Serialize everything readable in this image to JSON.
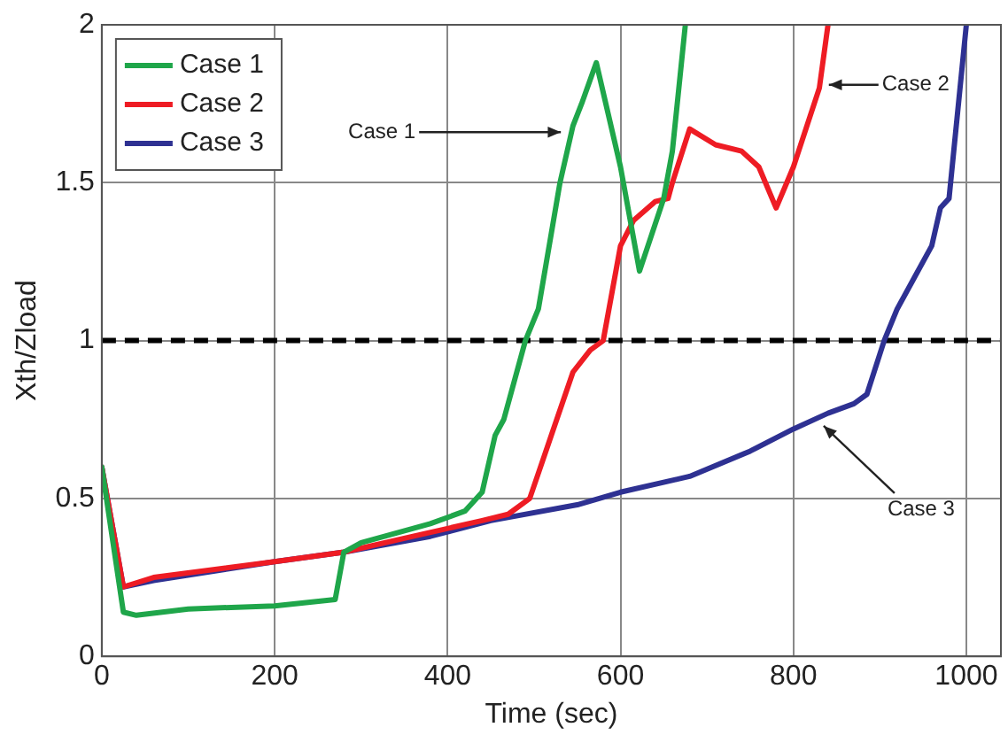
{
  "chart_data": {
    "type": "line",
    "xlabel": "Time (sec)",
    "ylabel": "Xth/Zload",
    "xlim": [
      0,
      1040
    ],
    "xticks": [
      0,
      200,
      400,
      600,
      800,
      1000
    ],
    "ylim": [
      0,
      2
    ],
    "yticks": [
      0,
      0.5,
      1,
      1.5,
      2
    ],
    "grid": true,
    "legend": "top left",
    "marker": "none",
    "line_style": "solid",
    "series": [
      {
        "name": "Case 1",
        "color": "#1fa64a",
        "x": [
          0,
          25,
          40,
          100,
          200,
          270,
          280,
          300,
          380,
          420,
          440,
          455,
          465,
          490,
          505,
          530,
          545,
          555,
          572,
          600,
          622,
          650,
          660,
          675
        ],
        "values": [
          0.6,
          0.14,
          0.13,
          0.15,
          0.16,
          0.18,
          0.33,
          0.36,
          0.42,
          0.46,
          0.52,
          0.7,
          0.75,
          1.0,
          1.1,
          1.5,
          1.68,
          1.75,
          1.88,
          1.55,
          1.22,
          1.45,
          1.6,
          2.0
        ]
      },
      {
        "name": "Case 2",
        "color": "#ee1c24",
        "x": [
          0,
          25,
          60,
          200,
          280,
          360,
          440,
          470,
          495,
          520,
          530,
          545,
          565,
          580,
          600,
          615,
          640,
          655,
          660,
          680,
          710,
          740,
          760,
          780,
          800,
          830,
          840
        ],
        "values": [
          0.6,
          0.22,
          0.25,
          0.3,
          0.33,
          0.38,
          0.43,
          0.45,
          0.5,
          0.7,
          0.78,
          0.9,
          0.97,
          1.0,
          1.3,
          1.38,
          1.44,
          1.45,
          1.5,
          1.67,
          1.62,
          1.6,
          1.55,
          1.42,
          1.55,
          1.8,
          2.0
        ]
      },
      {
        "name": "Case 3",
        "color": "#2e3192",
        "x": [
          0,
          25,
          60,
          200,
          280,
          380,
          450,
          550,
          600,
          680,
          750,
          800,
          840,
          870,
          885,
          905,
          920,
          940,
          960,
          970,
          980,
          1000
        ],
        "values": [
          0.6,
          0.22,
          0.24,
          0.3,
          0.33,
          0.38,
          0.43,
          0.48,
          0.52,
          0.57,
          0.65,
          0.72,
          0.77,
          0.8,
          0.83,
          1.0,
          1.1,
          1.2,
          1.3,
          1.42,
          1.45,
          2.0
        ]
      }
    ],
    "ref_lines": [
      {
        "axis": "y",
        "value": 1,
        "color": "#000000",
        "line_style": "dashed"
      }
    ],
    "annotations": [
      {
        "text": "Case 1",
        "x": 531,
        "y": 1.66
      },
      {
        "text": "Case 2",
        "x": 841,
        "y": 1.81
      },
      {
        "text": "Case 3",
        "x": 835,
        "y": 0.73
      }
    ]
  }
}
